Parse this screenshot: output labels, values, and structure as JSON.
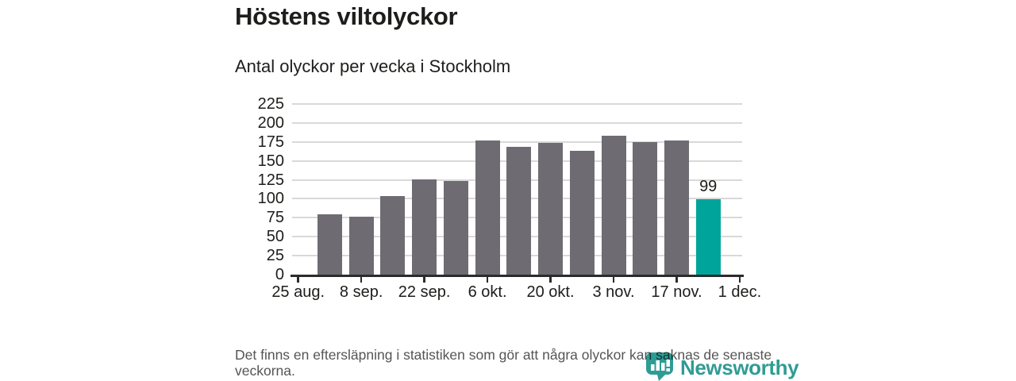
{
  "title": "Höstens viltolyckor",
  "subtitle": "Antal olyckor per vecka i Stockholm",
  "footer": {
    "note": "Det finns en eftersläpning i statistiken som gör att några olyckor kan saknas de senaste veckorna."
  },
  "logo": {
    "wordmark": "Newsworthy",
    "icon": "newsworthy-pin-barchart-icon"
  },
  "colors": {
    "bar_gray": "#6e6c72",
    "bar_highlight_teal": "#00a49b",
    "logo_teal": "#2f9c94",
    "gridline": "#d9d9d9",
    "axis": "#2b2b2b",
    "text_dark": "#1d1d1b",
    "footer_text": "#555555"
  },
  "chart_data": {
    "type": "bar",
    "title": "Höstens viltolyckor",
    "subtitle": "Antal olyckor per vecka i Stockholm",
    "xlabel": "",
    "ylabel": "",
    "grid": "horizontal",
    "legend_position": "none",
    "y_axis": {
      "min": 0,
      "max": 225,
      "tick_step": 25,
      "tick_labels": [
        "0",
        "25",
        "50",
        "75",
        "100",
        "125",
        "150",
        "175",
        "200",
        "225"
      ]
    },
    "x_axis": {
      "tick_labels": [
        "25 aug.",
        "8 sep.",
        "22 sep.",
        "6 okt.",
        "20 okt.",
        "3 nov.",
        "17 nov.",
        "1 dec."
      ],
      "note": "weekly bars, first bar one week after axis start"
    },
    "values": [
      80,
      76,
      104,
      126,
      124,
      177,
      168,
      174,
      163,
      183,
      175,
      177,
      99
    ],
    "highlight_index": 12,
    "data_labels": [
      {
        "index": 12,
        "text": "99"
      }
    ]
  }
}
